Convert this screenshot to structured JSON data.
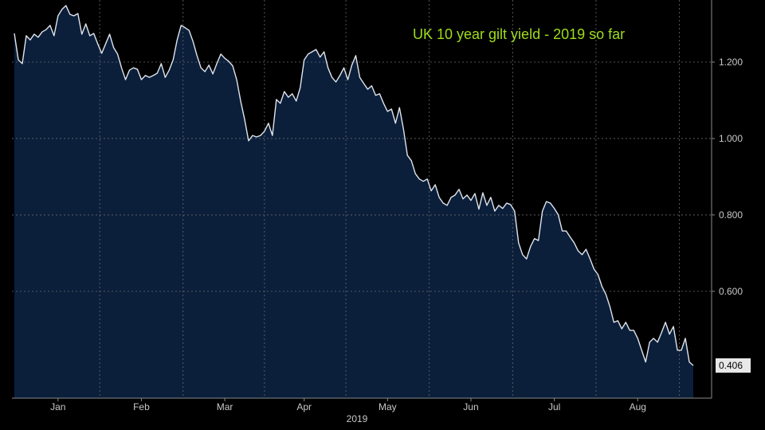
{
  "chart_data": {
    "type": "area",
    "title": "UK 10 year gilt yield - 2019 so far",
    "x_label": "2019",
    "categories": [
      null,
      null,
      null,
      null,
      null,
      null,
      null,
      null,
      null,
      null,
      null,
      "Jan",
      null,
      null,
      null,
      null,
      null,
      null,
      null,
      null,
      null,
      null,
      null,
      null,
      null,
      null,
      null,
      null,
      null,
      null,
      null,
      null,
      "Feb",
      null,
      null,
      null,
      null,
      null,
      null,
      null,
      null,
      null,
      null,
      null,
      null,
      null,
      null,
      null,
      null,
      null,
      null,
      null,
      null,
      "Mar",
      null,
      null,
      null,
      null,
      null,
      null,
      null,
      null,
      null,
      null,
      null,
      null,
      null,
      null,
      null,
      null,
      null,
      null,
      null,
      "Apr",
      null,
      null,
      null,
      null,
      null,
      null,
      null,
      null,
      null,
      null,
      null,
      null,
      null,
      null,
      null,
      null,
      null,
      null,
      null,
      null,
      "May",
      null,
      null,
      null,
      null,
      null,
      null,
      null,
      null,
      null,
      null,
      null,
      null,
      null,
      null,
      null,
      null,
      null,
      null,
      null,
      null,
      "Jun",
      null,
      null,
      null,
      null,
      null,
      null,
      null,
      null,
      null,
      null,
      null,
      null,
      null,
      null,
      null,
      null,
      null,
      null,
      null,
      null,
      "Jul",
      null,
      null,
      null,
      null,
      null,
      null,
      null,
      null,
      null,
      null,
      null,
      null,
      null,
      null,
      null,
      null,
      null,
      null,
      null,
      null,
      "Aug",
      null,
      null,
      null,
      null,
      null,
      null,
      null,
      null,
      null,
      null,
      null,
      null,
      null,
      null
    ],
    "series": [
      {
        "color": "#dfe4ec",
        "fill": "#0b1f3b",
        "values": [
          1.275,
          1.206,
          1.196,
          1.269,
          1.258,
          1.273,
          1.265,
          1.279,
          1.285,
          1.296,
          1.269,
          1.321,
          1.338,
          1.348,
          1.325,
          1.321,
          1.327,
          1.273,
          1.3,
          1.269,
          1.275,
          1.248,
          1.223,
          1.248,
          1.273,
          1.238,
          1.221,
          1.185,
          1.154,
          1.179,
          1.185,
          1.181,
          1.154,
          1.165,
          1.16,
          1.165,
          1.171,
          1.196,
          1.16,
          1.179,
          1.206,
          1.258,
          1.296,
          1.29,
          1.283,
          1.254,
          1.217,
          1.185,
          1.175,
          1.192,
          1.169,
          1.196,
          1.221,
          1.21,
          1.202,
          1.19,
          1.154,
          1.098,
          1.05,
          0.994,
          1.008,
          1.004,
          1.008,
          1.019,
          1.04,
          1.008,
          1.102,
          1.092,
          1.123,
          1.108,
          1.117,
          1.098,
          1.133,
          1.206,
          1.221,
          1.227,
          1.233,
          1.213,
          1.227,
          1.185,
          1.16,
          1.148,
          1.165,
          1.185,
          1.154,
          1.192,
          1.217,
          1.16,
          1.144,
          1.129,
          1.138,
          1.113,
          1.117,
          1.092,
          1.071,
          1.077,
          1.04,
          1.081,
          1.025,
          0.956,
          0.942,
          0.908,
          0.894,
          0.888,
          0.894,
          0.863,
          0.879,
          0.846,
          0.831,
          0.825,
          0.846,
          0.852,
          0.867,
          0.842,
          0.852,
          0.838,
          0.856,
          0.815,
          0.858,
          0.825,
          0.846,
          0.81,
          0.825,
          0.817,
          0.831,
          0.827,
          0.81,
          0.727,
          0.696,
          0.685,
          0.717,
          0.738,
          0.733,
          0.81,
          0.835,
          0.831,
          0.817,
          0.8,
          0.758,
          0.758,
          0.742,
          0.727,
          0.706,
          0.696,
          0.71,
          0.685,
          0.658,
          0.644,
          0.613,
          0.592,
          0.56,
          0.519,
          0.523,
          0.502,
          0.519,
          0.498,
          0.498,
          0.477,
          0.446,
          0.415,
          0.467,
          0.477,
          0.467,
          0.492,
          0.519,
          0.488,
          0.508,
          0.446,
          0.446,
          0.477,
          0.415,
          0.406
        ]
      }
    ],
    "ylim": [
      0.3205,
      1.3625
    ],
    "yticks": [
      {
        "value": 0.6,
        "label": "0.600"
      },
      {
        "value": 0.8,
        "label": "0.800"
      },
      {
        "value": 1.0,
        "label": "1.000"
      },
      {
        "value": 1.2,
        "label": "1.200"
      }
    ],
    "grid": true,
    "title_color": "#9fdc1c"
  }
}
